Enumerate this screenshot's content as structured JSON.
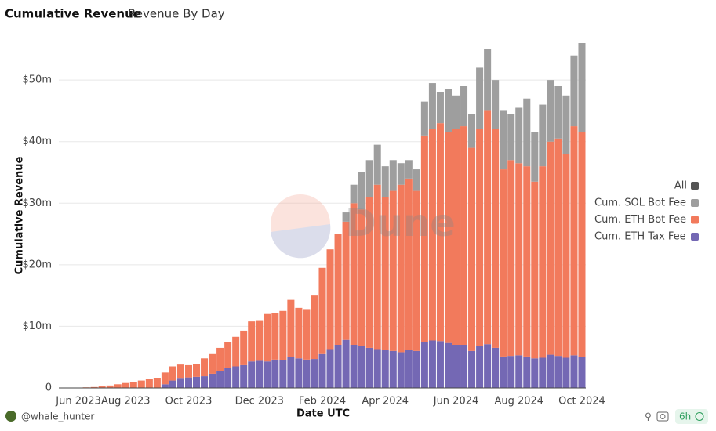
{
  "tabs": [
    "Cumulative Revenue",
    "Revenue By Day"
  ],
  "footer": {
    "user": "@whale_hunter",
    "age": "6h"
  },
  "chart_data": {
    "type": "bar",
    "stacked": true,
    "watermark": "Dune",
    "x_label": "Date UTC",
    "y_label": "Cumulative Revenue",
    "legend_all": "All",
    "categories": [
      null,
      null,
      "Jun 2023",
      null,
      null,
      null,
      null,
      null,
      "Aug 2023",
      null,
      null,
      null,
      null,
      null,
      null,
      null,
      "Oct 2023",
      null,
      null,
      null,
      null,
      null,
      null,
      null,
      null,
      "Dec 2023",
      null,
      null,
      null,
      null,
      null,
      null,
      null,
      "Feb 2024",
      null,
      null,
      null,
      null,
      null,
      null,
      null,
      "Apr 2024",
      null,
      null,
      null,
      null,
      null,
      null,
      null,
      null,
      "Jun 2024",
      null,
      null,
      null,
      null,
      null,
      null,
      null,
      "Aug 2024",
      null,
      null,
      null,
      null,
      null,
      null,
      null,
      "Oct 2024"
    ],
    "series": [
      {
        "name": "Cum. ETH Tax Fee",
        "color": "#7468b4",
        "values": [
          0,
          0,
          0,
          0,
          0,
          0,
          0,
          0,
          0,
          0,
          0,
          0,
          0,
          0.6,
          1.2,
          1.5,
          1.7,
          1.8,
          1.9,
          2.3,
          2.8,
          3.2,
          3.5,
          3.7,
          4.3,
          4.4,
          4.3,
          4.6,
          4.5,
          5.0,
          4.8,
          4.6,
          4.7,
          5.5,
          6.3,
          7.0,
          7.8,
          7.0,
          6.8,
          6.5,
          6.3,
          6.2,
          6.0,
          5.8,
          6.2,
          6.0,
          7.5,
          7.7,
          7.6,
          7.3,
          7.0,
          7.0,
          6.0,
          6.8,
          7.1,
          6.5,
          5.1,
          5.2,
          5.3,
          5.1,
          4.8,
          4.9,
          5.4,
          5.2,
          4.9,
          5.3,
          5.0
        ]
      },
      {
        "name": "Cum. ETH Bot Fee",
        "color": "#f27a5c",
        "values": [
          0,
          0.02,
          0.05,
          0.1,
          0.15,
          0.25,
          0.4,
          0.6,
          0.8,
          1.0,
          1.2,
          1.4,
          1.6,
          1.9,
          2.3,
          2.3,
          2.0,
          2.1,
          2.9,
          3.2,
          3.7,
          4.3,
          4.8,
          5.6,
          6.5,
          6.6,
          7.7,
          7.6,
          8.0,
          9.3,
          8.2,
          8.2,
          10.3,
          14.0,
          16.2,
          18.0,
          19.2,
          23.0,
          22.2,
          24.5,
          26.7,
          24.8,
          26.0,
          27.2,
          27.8,
          26.0,
          33.5,
          34.3,
          35.4,
          34.2,
          35.0,
          35.5,
          33.0,
          35.2,
          37.9,
          35.5,
          30.4,
          31.8,
          31.2,
          30.9,
          28.7,
          31.1,
          34.6,
          35.3,
          33.1,
          37.2,
          36.5
        ]
      },
      {
        "name": "Cum. SOL Bot Fee",
        "color": "#9e9e9e",
        "values": [
          0,
          0,
          0,
          0,
          0,
          0,
          0,
          0,
          0,
          0,
          0,
          0,
          0,
          0,
          0,
          0,
          0,
          0,
          0,
          0,
          0,
          0,
          0,
          0,
          0,
          0,
          0,
          0,
          0,
          0,
          0,
          0,
          0,
          0,
          0,
          0,
          1.5,
          3,
          6,
          6,
          6.5,
          5,
          5,
          3.5,
          3,
          3.5,
          5.5,
          7.5,
          5,
          7,
          5.5,
          6.5,
          5.5,
          10,
          10,
          8,
          9.5,
          7.5,
          9,
          11,
          8,
          10,
          10,
          8.5,
          9.5,
          11.5,
          14.5
        ]
      }
    ],
    "ylim": [
      0,
      56
    ],
    "yticks": [
      0,
      {
        "value": 10,
        "label": "$10m"
      },
      {
        "value": 20,
        "label": "$20m"
      },
      {
        "value": 30,
        "label": "$30m"
      },
      {
        "value": 40,
        "label": "$40m"
      },
      {
        "value": 50,
        "label": "$50m"
      }
    ],
    "grid": true
  }
}
